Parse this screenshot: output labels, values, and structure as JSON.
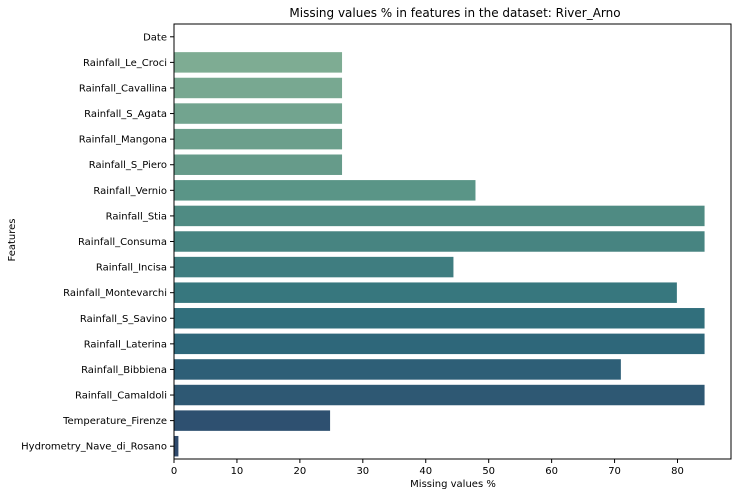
{
  "chart_data": {
    "type": "bar",
    "orientation": "horizontal",
    "title": "Missing values % in features in the dataset: River_Arno",
    "xlabel": "Missing values %",
    "ylabel": "Features",
    "xlim": [
      0,
      88.5
    ],
    "xticks": [
      0,
      10,
      20,
      30,
      40,
      50,
      60,
      70,
      80
    ],
    "grid": false,
    "legend": "none",
    "palette": "crest",
    "categories": [
      "Date",
      "Rainfall_Le_Croci",
      "Rainfall_Cavallina",
      "Rainfall_S_Agata",
      "Rainfall_Mangona",
      "Rainfall_S_Piero",
      "Rainfall_Vernio",
      "Rainfall_Stia",
      "Rainfall_Consuma",
      "Rainfall_Incisa",
      "Rainfall_Montevarchi",
      "Rainfall_S_Savino",
      "Rainfall_Laterina",
      "Rainfall_Bibbiena",
      "Rainfall_Camaldoli",
      "Temperature_Firenze",
      "Hydrometry_Nave_di_Rosano"
    ],
    "values": [
      0,
      26.7,
      26.7,
      26.7,
      26.7,
      26.7,
      47.9,
      84.3,
      84.3,
      44.4,
      79.9,
      84.3,
      84.3,
      71.0,
      84.3,
      24.8,
      0.7
    ],
    "colors": [
      "#84b196",
      "#7eac93",
      "#78a891",
      "#72a48f",
      "#6c9f8c",
      "#669b8a",
      "#5a9587",
      "#4f8b83",
      "#478481",
      "#3f7d80",
      "#37777e",
      "#316f7c",
      "#2e677a",
      "#2e5f77",
      "#2e5873",
      "#2e5070",
      "#2f4a6d"
    ]
  }
}
